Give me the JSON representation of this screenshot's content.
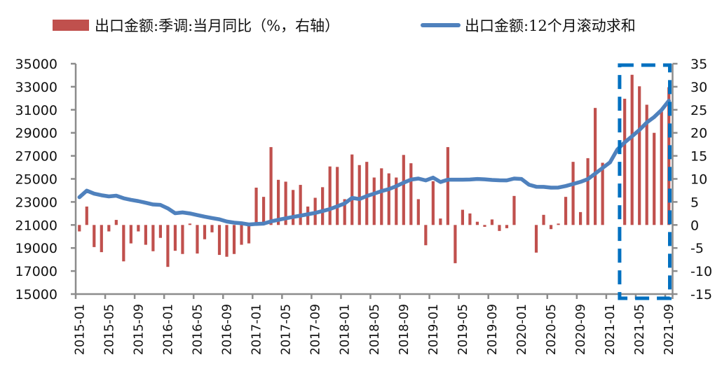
{
  "legend": {
    "bar_label": "出口金额:季调:当月同比（%，右轴）",
    "line_label": "出口金额:12个月滚动求和"
  },
  "colors": {
    "bar": "#C0504D",
    "line": "#4F81BD",
    "axis": "#8c8c8c",
    "highlight_box": "#0070C0"
  },
  "chart_data": {
    "type": "bar+line",
    "title": "",
    "xlabel": "",
    "ylabel_left": "",
    "ylabel_right": "",
    "grid": false,
    "legend_position": "top",
    "categories": [
      "2015-01",
      "2015-02",
      "2015-03",
      "2015-04",
      "2015-05",
      "2015-06",
      "2015-07",
      "2015-08",
      "2015-09",
      "2015-10",
      "2015-11",
      "2015-12",
      "2016-01",
      "2016-02",
      "2016-03",
      "2016-04",
      "2016-05",
      "2016-06",
      "2016-07",
      "2016-08",
      "2016-09",
      "2016-10",
      "2016-11",
      "2016-12",
      "2017-01",
      "2017-02",
      "2017-03",
      "2017-04",
      "2017-05",
      "2017-06",
      "2017-07",
      "2017-08",
      "2017-09",
      "2017-10",
      "2017-11",
      "2017-12",
      "2018-01",
      "2018-02",
      "2018-03",
      "2018-04",
      "2018-05",
      "2018-06",
      "2018-07",
      "2018-08",
      "2018-09",
      "2018-10",
      "2018-11",
      "2018-12",
      "2019-01",
      "2019-02",
      "2019-03",
      "2019-04",
      "2019-05",
      "2019-06",
      "2019-07",
      "2019-08",
      "2019-09",
      "2019-10",
      "2019-11",
      "2019-12",
      "2020-01",
      "2020-02",
      "2020-03",
      "2020-04",
      "2020-05",
      "2020-06",
      "2020-07",
      "2020-08",
      "2020-09",
      "2020-10",
      "2020-11",
      "2020-12",
      "2021-01",
      "2021-02",
      "2021-03",
      "2021-04",
      "2021-05",
      "2021-06",
      "2021-07",
      "2021-08",
      "2021-09"
    ],
    "x_tick_labels": [
      "2015-01",
      "2015-05",
      "2015-09",
      "2016-01",
      "2016-05",
      "2016-09",
      "2017-01",
      "2017-05",
      "2017-09",
      "2018-01",
      "2018-05",
      "2018-09",
      "2019-01",
      "2019-05",
      "2019-09",
      "2020-01",
      "2020-05",
      "2020-09",
      "2021-01",
      "2021-05",
      "2021-09"
    ],
    "x_tick_every": 4,
    "left_axis": {
      "ylim": [
        15000,
        35000
      ],
      "ticks": [
        "35000",
        "33000",
        "31000",
        "29000",
        "27000",
        "25000",
        "23000",
        "21000",
        "19000",
        "17000",
        "15000"
      ]
    },
    "right_axis": {
      "ylim": [
        -15,
        35
      ],
      "ticks": [
        "35",
        "30",
        "25",
        "20",
        "15",
        "10",
        "5",
        "0",
        "-5",
        "-10",
        "-15"
      ]
    },
    "series": [
      {
        "name": "出口金额:季调:当月同比（%，右轴）",
        "type": "bar",
        "axis": "right",
        "values": [
          -1.4,
          4.0,
          -4.8,
          -5.9,
          -1.4,
          1.1,
          -7.9,
          -4.0,
          -1.4,
          -4.3,
          -5.7,
          -2.8,
          -9.1,
          -5.6,
          -6.3,
          0.3,
          -6.2,
          -3.1,
          -1.6,
          -6.5,
          -6.9,
          -6.3,
          -4.3,
          -4.0,
          8.1,
          6.1,
          16.9,
          9.8,
          9.4,
          7.6,
          8.7,
          4.0,
          5.9,
          8.2,
          12.7,
          12.6,
          5.6,
          15.3,
          13.0,
          13.7,
          10.3,
          12.3,
          11.2,
          10.3,
          15.2,
          13.4,
          5.6,
          -4.4,
          9.5,
          1.4,
          16.9,
          -8.3,
          3.3,
          2.5,
          0.7,
          -0.4,
          1.2,
          -1.3,
          -0.7,
          6.3,
          null,
          null,
          -6.0,
          2.2,
          -0.9,
          0.3,
          6.1,
          13.7,
          2.8,
          14.5,
          25.4,
          13.5,
          null,
          null,
          27.4,
          32.6,
          30.1,
          26.1,
          20.0,
          24.6,
          29.9
        ]
      },
      {
        "name": "出口金额:12个月滚动求和",
        "type": "line",
        "axis": "left",
        "values": [
          23410,
          23980,
          23720,
          23580,
          23480,
          23540,
          23320,
          23180,
          23070,
          22930,
          22780,
          22740,
          22440,
          22020,
          22090,
          22000,
          21860,
          21720,
          21600,
          21490,
          21300,
          21200,
          21150,
          21040,
          21090,
          21120,
          21310,
          21450,
          21580,
          21700,
          21810,
          21930,
          22050,
          22210,
          22380,
          22620,
          22870,
          23350,
          23250,
          23510,
          23720,
          23940,
          24110,
          24370,
          24670,
          24940,
          25030,
          24870,
          25110,
          24730,
          24930,
          24930,
          24930,
          24950,
          24990,
          24960,
          24910,
          24880,
          24870,
          25030,
          24990,
          24500,
          24320,
          24310,
          24240,
          24250,
          24380,
          24560,
          24740,
          24980,
          25460,
          25950,
          26430,
          27550,
          28170,
          28700,
          29250,
          29900,
          30370,
          30980,
          31790
        ]
      }
    ],
    "annotations": [
      {
        "type": "dashed-box",
        "from": "2021-03",
        "to": "2021-09"
      }
    ]
  }
}
